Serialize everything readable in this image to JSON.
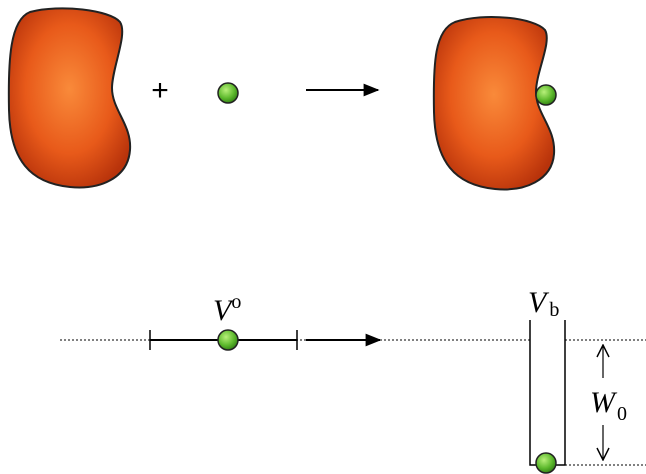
{
  "top": {
    "operator": "+"
  },
  "bottom": {
    "free_volume": {
      "symbol": "V",
      "superscript": "o"
    },
    "bound_volume": {
      "symbol": "V",
      "subscript": "b"
    },
    "well_depth": {
      "symbol": "W",
      "subscript": "0"
    }
  }
}
